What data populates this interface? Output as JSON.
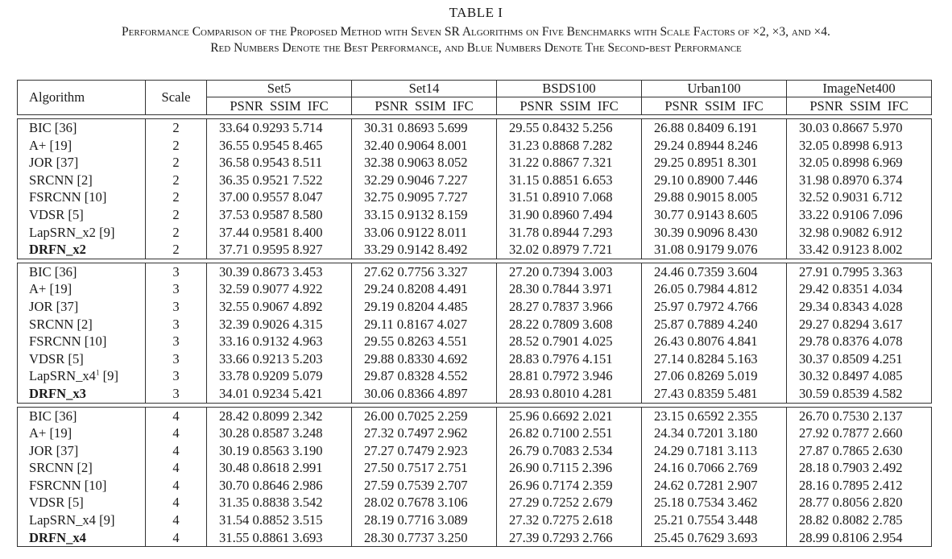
{
  "caption": {
    "label": "TABLE I",
    "line1": "Performance Comparison of the Proposed Method with Seven SR Algorithms on Five Benchmarks with Scale Factors of ×2, ×3, and ×4.",
    "line2": "Red Numbers Denote the Best Performance, and Blue Numbers Denote The Second-best Performance"
  },
  "headers": {
    "algorithm": "Algorithm",
    "scale": "Scale",
    "datasets": [
      "Set5",
      "Set14",
      "BSDS100",
      "Urban100",
      "ImageNet400"
    ],
    "metrics": "PSNR  SSIM  IFC"
  },
  "groups": [
    {
      "scale": "2",
      "rows": [
        {
          "alg": "BIC [36]",
          "bold": false,
          "vals": [
            "33.64 0.9293 5.714",
            "30.31 0.8693 5.699",
            "29.55 0.8432 5.256",
            "26.88 0.8409 6.191",
            "30.03 0.8667 5.970"
          ]
        },
        {
          "alg": "A+ [19]",
          "bold": false,
          "vals": [
            "36.55 0.9545 8.465",
            "32.40 0.9064 8.001",
            "31.23 0.8868 7.282",
            "29.24 0.8944 8.246",
            "32.05 0.8998 6.913"
          ]
        },
        {
          "alg": "JOR [37]",
          "bold": false,
          "vals": [
            "36.58 0.9543 8.511",
            "32.38 0.9063 8.052",
            "31.22 0.8867 7.321",
            "29.25 0.8951 8.301",
            "32.05 0.8998 6.969"
          ]
        },
        {
          "alg": "SRCNN [2]",
          "bold": false,
          "vals": [
            "36.35 0.9521 7.522",
            "32.29 0.9046 7.227",
            "31.15 0.8851 6.653",
            "29.10 0.8900 7.446",
            "31.98 0.8970 6.374"
          ]
        },
        {
          "alg": "FSRCNN [10]",
          "bold": false,
          "vals": [
            "37.00 0.9557 8.047",
            "32.75 0.9095 7.727",
            "31.51 0.8910 7.068",
            "29.88 0.9015 8.005",
            "32.52 0.9031 6.712"
          ]
        },
        {
          "alg": "VDSR [5]",
          "bold": false,
          "vals": [
            "37.53 0.9587 8.580",
            "33.15 0.9132 8.159",
            "31.90 0.8960 7.494",
            "30.77 0.9143 8.605",
            "33.22 0.9106 7.096"
          ]
        },
        {
          "alg": "LapSRN_x2 [9]",
          "bold": false,
          "vals": [
            "37.44 0.9581 8.400",
            "33.06 0.9122 8.011",
            "31.78 0.8944 7.293",
            "30.39 0.9096 8.430",
            "32.98 0.9082 6.912"
          ]
        },
        {
          "alg": "DRFN_x2",
          "bold": true,
          "vals": [
            "37.71 0.9595 8.927",
            "33.29 0.9142 8.492",
            "32.02 0.8979 7.721",
            "31.08 0.9179 9.076",
            "33.42 0.9123 8.002"
          ]
        }
      ]
    },
    {
      "scale": "3",
      "rows": [
        {
          "alg": "BIC [36]",
          "bold": false,
          "vals": [
            "30.39 0.8673 3.453",
            "27.62 0.7756 3.327",
            "27.20 0.7394 3.003",
            "24.46 0.7359 3.604",
            "27.91 0.7995 3.363"
          ]
        },
        {
          "alg": "A+ [19]",
          "bold": false,
          "vals": [
            "32.59 0.9077 4.922",
            "29.24 0.8208 4.491",
            "28.30 0.7844 3.971",
            "26.05 0.7984 4.812",
            "29.42 0.8351 4.034"
          ]
        },
        {
          "alg": "JOR [37]",
          "bold": false,
          "vals": [
            "32.55 0.9067 4.892",
            "29.19 0.8204 4.485",
            "28.27 0.7837 3.966",
            "25.97 0.7972 4.766",
            "29.34 0.8343 4.028"
          ]
        },
        {
          "alg": "SRCNN [2]",
          "bold": false,
          "vals": [
            "32.39 0.9026 4.315",
            "29.11 0.8167 4.027",
            "28.22 0.7809 3.608",
            "25.87 0.7889 4.240",
            "29.27 0.8294 3.617"
          ]
        },
        {
          "alg": "FSRCNN [10]",
          "bold": false,
          "vals": [
            "33.16 0.9132 4.963",
            "29.55 0.8263 4.551",
            "28.52 0.7901 4.025",
            "26.43 0.8076 4.841",
            "29.78 0.8376 4.078"
          ]
        },
        {
          "alg": "VDSR [5]",
          "bold": false,
          "vals": [
            "33.66 0.9213 5.203",
            "29.88 0.8330 4.692",
            "28.83 0.7976 4.151",
            "27.14 0.8284 5.163",
            "30.37 0.8509 4.251"
          ]
        },
        {
          "alg": "LapSRN_x4",
          "sup": "1",
          "ref": " [9]",
          "bold": false,
          "vals": [
            "33.78 0.9209 5.079",
            "29.87 0.8328 4.552",
            "28.81 0.7972 3.946",
            "27.06 0.8269 5.019",
            "30.32 0.8497 4.085"
          ]
        },
        {
          "alg": "DRFN_x3",
          "bold": true,
          "vals": [
            "34.01 0.9234 5.421",
            "30.06 0.8366 4.897",
            "28.93 0.8010 4.281",
            "27.43 0.8359 5.481",
            "30.59 0.8539 4.582"
          ]
        }
      ]
    },
    {
      "scale": "4",
      "rows": [
        {
          "alg": "BIC [36]",
          "bold": false,
          "vals": [
            "28.42 0.8099 2.342",
            "26.00 0.7025 2.259",
            "25.96 0.6692 2.021",
            "23.15 0.6592 2.355",
            "26.70 0.7530 2.137"
          ]
        },
        {
          "alg": "A+ [19]",
          "bold": false,
          "vals": [
            "30.28 0.8587 3.248",
            "27.32 0.7497 2.962",
            "26.82 0.7100 2.551",
            "24.34 0.7201 3.180",
            "27.92 0.7877 2.660"
          ]
        },
        {
          "alg": "JOR [37]",
          "bold": false,
          "vals": [
            "30.19 0.8563 3.190",
            "27.27 0.7479 2.923",
            "26.79 0.7083 2.534",
            "24.29 0.7181 3.113",
            "27.87 0.7865 2.630"
          ]
        },
        {
          "alg": "SRCNN [2]",
          "bold": false,
          "vals": [
            "30.48 0.8618 2.991",
            "27.50 0.7517 2.751",
            "26.90 0.7115 2.396",
            "24.16 0.7066 2.769",
            "28.18 0.7903 2.492"
          ]
        },
        {
          "alg": "FSRCNN [10]",
          "bold": false,
          "vals": [
            "30.70 0.8646 2.986",
            "27.59 0.7539 2.707",
            "26.96 0.7174 2.359",
            "24.62 0.7281 2.907",
            "28.16 0.7895 2.412"
          ]
        },
        {
          "alg": "VDSR [5]",
          "bold": false,
          "vals": [
            "31.35 0.8838 3.542",
            "28.02 0.7678 3.106",
            "27.29 0.7252 2.679",
            "25.18 0.7534 3.462",
            "28.77 0.8056 2.820"
          ]
        },
        {
          "alg": "LapSRN_x4 [9]",
          "bold": false,
          "vals": [
            "31.54 0.8852 3.515",
            "28.19 0.7716 3.089",
            "27.32 0.7275 2.618",
            "25.21 0.7554 3.448",
            "28.82 0.8082 2.785"
          ]
        },
        {
          "alg": "DRFN_x4",
          "bold": true,
          "vals": [
            "31.55 0.8861 3.693",
            "28.30 0.7737 3.250",
            "27.39 0.7293 2.766",
            "25.45 0.7629 3.693",
            "28.99 0.8106 2.954"
          ]
        }
      ]
    }
  ]
}
